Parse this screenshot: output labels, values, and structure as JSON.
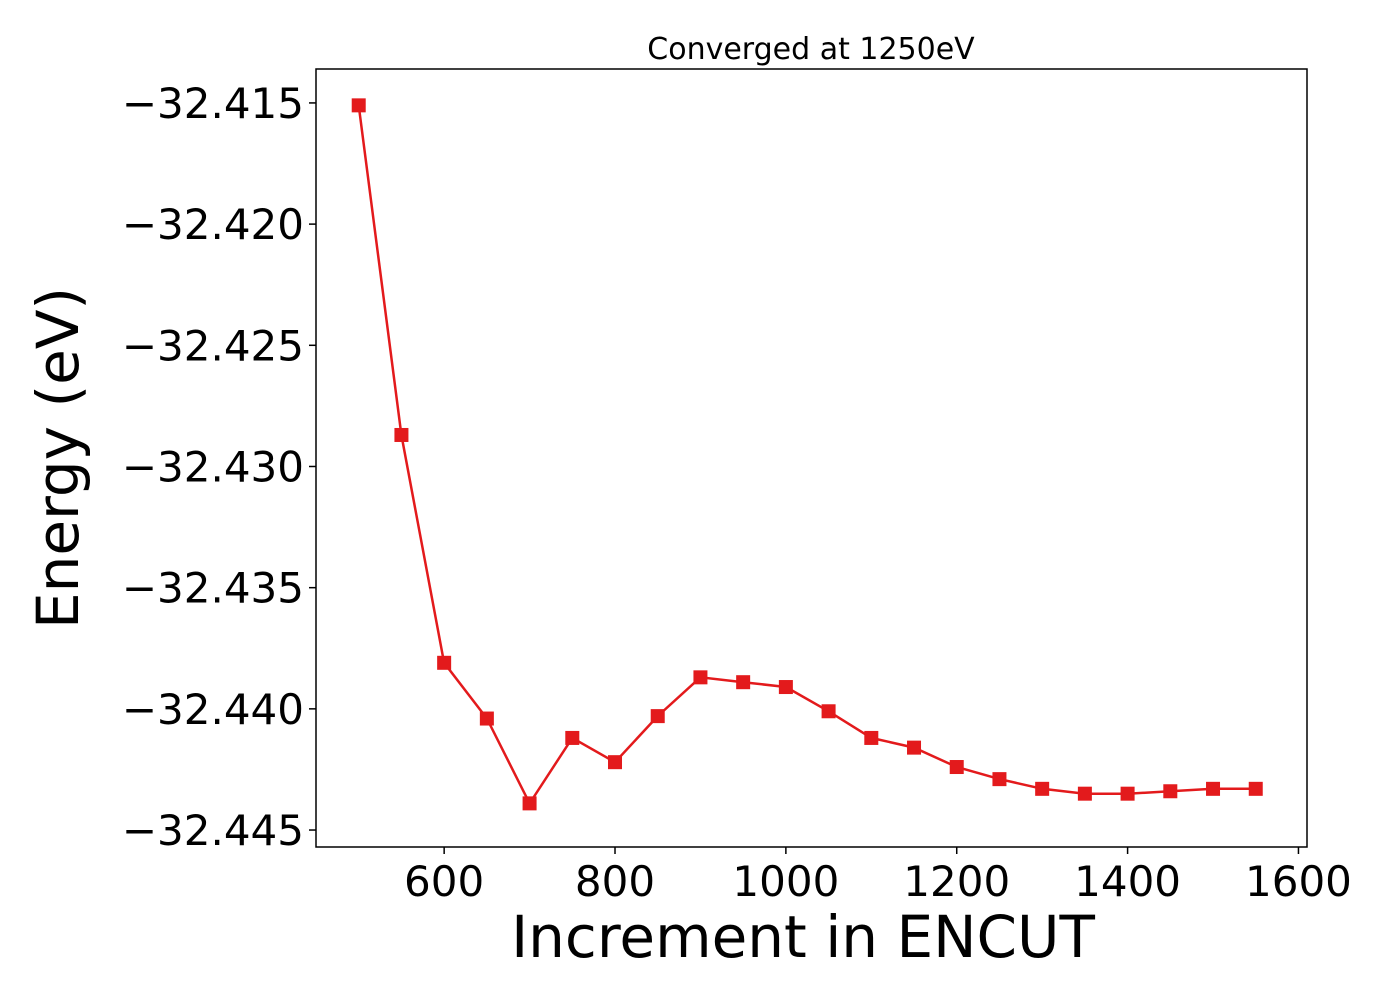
{
  "chart_data": {
    "type": "line",
    "title": "Converged at 1250eV",
    "xlabel": "Increment in ENCUT",
    "ylabel": "Energy (eV)",
    "xlim": [
      450,
      1610
    ],
    "ylim": [
      -32.4457,
      -32.4136
    ],
    "xticks": [
      600,
      800,
      1000,
      1200,
      1400,
      1600
    ],
    "xtick_labels": [
      "600",
      "800",
      "1000",
      "1200",
      "1400",
      "1600"
    ],
    "yticks": [
      -32.415,
      -32.42,
      -32.425,
      -32.43,
      -32.435,
      -32.44,
      -32.445
    ],
    "ytick_labels": [
      "−32.415",
      "−32.420",
      "−32.425",
      "−32.430",
      "−32.435",
      "−32.440",
      "−32.445"
    ],
    "grid": false,
    "marker": "square",
    "color": "#e31a1c",
    "series": [
      {
        "x": [
          500,
          550,
          600,
          650,
          700,
          750,
          800,
          850,
          900,
          950,
          1000,
          1050,
          1100,
          1150,
          1200,
          1250,
          1300,
          1350,
          1400,
          1450,
          1500,
          1550
        ],
        "y": [
          -32.4151,
          -32.4287,
          -32.4381,
          -32.4404,
          -32.4439,
          -32.4412,
          -32.4422,
          -32.4403,
          -32.4387,
          -32.4389,
          -32.4391,
          -32.4401,
          -32.4412,
          -32.4416,
          -32.4424,
          -32.4429,
          -32.4433,
          -32.4435,
          -32.4435,
          -32.4434,
          -32.4433,
          -32.4433
        ]
      }
    ]
  }
}
